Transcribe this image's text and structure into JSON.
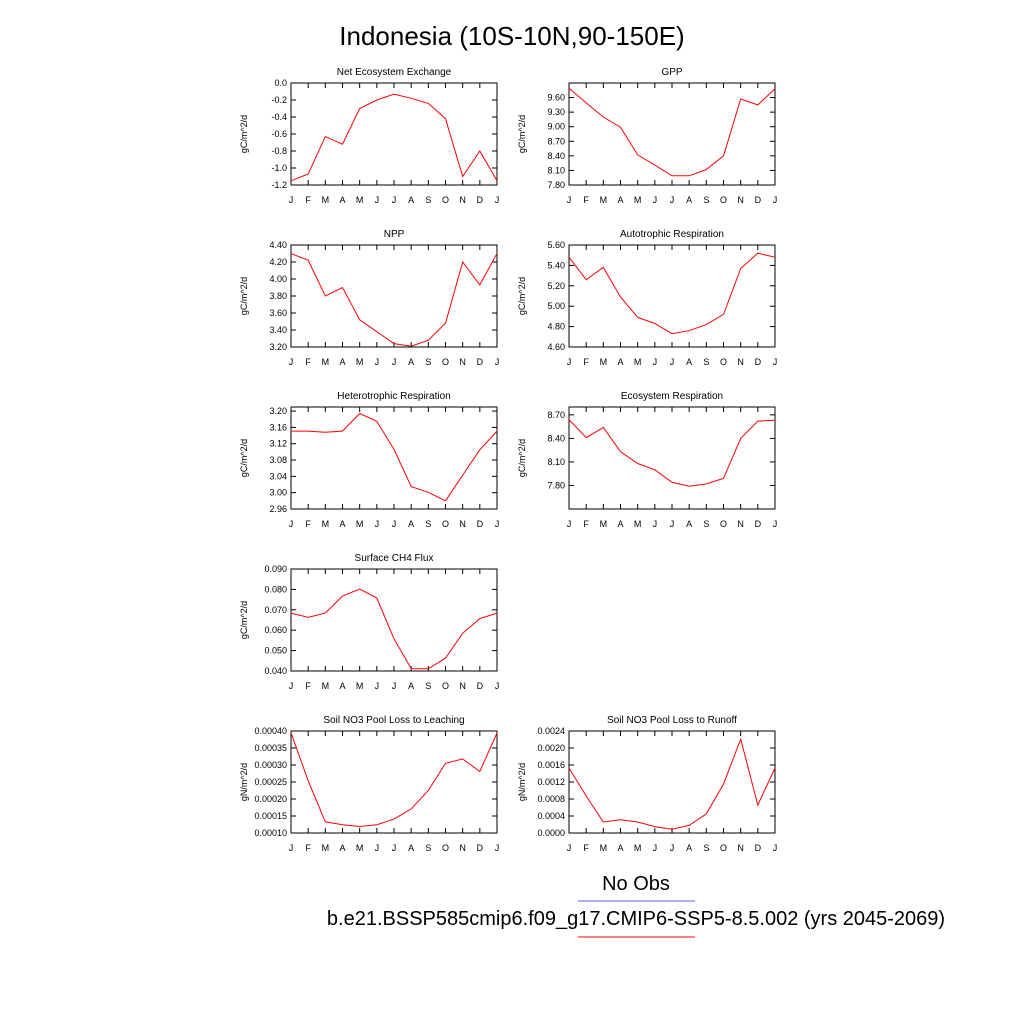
{
  "title": "Indonesia (10S-10N,90-150E)",
  "legend": {
    "obs_label": "No Obs",
    "obs_color": "#5b5bff",
    "model_label": "b.e21.BSSP585cmip6.f09_g17.CMIP6-SSP5-8.5.002 (yrs 2045-2069)",
    "model_color": "#ff0000"
  },
  "chart_data": [
    {
      "type": "line",
      "title": "Net Ecosystem Exchange",
      "ylabel": "gC/m^2/d",
      "categories": [
        "J",
        "F",
        "M",
        "A",
        "M",
        "J",
        "J",
        "A",
        "S",
        "O",
        "N",
        "D",
        "J"
      ],
      "ylim": [
        -1.2,
        0.0
      ],
      "yticks": [
        0.0,
        -0.2,
        -0.4,
        -0.6,
        -0.8,
        -1.0,
        -1.2
      ],
      "ytick_labels": [
        "0.0",
        "-0.2",
        "-0.4",
        "-0.6",
        "-0.8",
        "-1.0",
        "-1.2"
      ],
      "series": [
        {
          "values": [
            -1.15,
            -1.07,
            -0.63,
            -0.72,
            -0.3,
            -0.2,
            -0.13,
            -0.18,
            -0.24,
            -0.42,
            -1.1,
            -0.8,
            -1.15
          ]
        }
      ]
    },
    {
      "type": "line",
      "title": "GPP",
      "ylabel": "gC/m^2/d",
      "categories": [
        "J",
        "F",
        "M",
        "A",
        "M",
        "J",
        "J",
        "A",
        "S",
        "O",
        "N",
        "D",
        "J"
      ],
      "ylim": [
        7.8,
        9.9
      ],
      "yticks": [
        9.6,
        9.3,
        9.0,
        8.7,
        8.4,
        8.1,
        7.8
      ],
      "ytick_labels": [
        "9.60",
        "9.30",
        "9.00",
        "8.70",
        "8.40",
        "8.10",
        "7.80"
      ],
      "series": [
        {
          "values": [
            9.79,
            9.49,
            9.2,
            8.99,
            8.42,
            8.21,
            7.99,
            7.99,
            8.12,
            8.4,
            9.57,
            9.45,
            9.78
          ]
        }
      ]
    },
    {
      "type": "line",
      "title": "NPP",
      "ylabel": "gC/m^2/d",
      "categories": [
        "J",
        "F",
        "M",
        "A",
        "M",
        "J",
        "J",
        "A",
        "S",
        "O",
        "N",
        "D",
        "J"
      ],
      "ylim": [
        3.2,
        4.4
      ],
      "yticks": [
        4.4,
        4.2,
        4.0,
        3.8,
        3.6,
        3.4,
        3.2
      ],
      "ytick_labels": [
        "4.40",
        "4.20",
        "4.00",
        "3.80",
        "3.60",
        "3.40",
        "3.20"
      ],
      "series": [
        {
          "values": [
            4.3,
            4.22,
            3.8,
            3.9,
            3.52,
            3.38,
            3.24,
            3.21,
            3.28,
            3.48,
            4.2,
            3.93,
            4.3
          ]
        }
      ]
    },
    {
      "type": "line",
      "title": "Autotrophic Respiration",
      "ylabel": "gC/m^2/d",
      "categories": [
        "J",
        "F",
        "M",
        "A",
        "M",
        "J",
        "J",
        "A",
        "S",
        "O",
        "N",
        "D",
        "J"
      ],
      "ylim": [
        4.6,
        5.6
      ],
      "yticks": [
        5.6,
        5.4,
        5.2,
        5.0,
        4.8,
        4.6
      ],
      "ytick_labels": [
        "5.60",
        "5.40",
        "5.20",
        "5.00",
        "4.80",
        "4.60"
      ],
      "series": [
        {
          "values": [
            5.48,
            5.26,
            5.38,
            5.09,
            4.89,
            4.83,
            4.73,
            4.76,
            4.82,
            4.92,
            5.37,
            5.52,
            5.48
          ]
        }
      ]
    },
    {
      "type": "line",
      "title": "Heterotrophic Respiration",
      "ylabel": "gC/m^2/d",
      "categories": [
        "J",
        "F",
        "M",
        "A",
        "M",
        "J",
        "J",
        "A",
        "S",
        "O",
        "N",
        "D",
        "J"
      ],
      "ylim": [
        2.96,
        3.21
      ],
      "yticks": [
        3.2,
        3.16,
        3.12,
        3.08,
        3.04,
        3.0,
        2.96
      ],
      "ytick_labels": [
        "3.20",
        "3.16",
        "3.12",
        "3.08",
        "3.04",
        "3.00",
        "2.96"
      ],
      "series": [
        {
          "values": [
            3.151,
            3.151,
            3.148,
            3.151,
            3.194,
            3.175,
            3.106,
            3.015,
            3.001,
            2.98,
            3.043,
            3.105,
            3.151
          ]
        }
      ]
    },
    {
      "type": "line",
      "title": "Ecosystem Respiration",
      "ylabel": "gC/m^2/d",
      "categories": [
        "J",
        "F",
        "M",
        "A",
        "M",
        "J",
        "J",
        "A",
        "S",
        "O",
        "N",
        "D",
        "J"
      ],
      "ylim": [
        7.5,
        8.8
      ],
      "yticks": [
        8.7,
        8.4,
        8.1,
        7.8
      ],
      "ytick_labels": [
        "8.70",
        "8.40",
        "8.10",
        "7.80"
      ],
      "series": [
        {
          "values": [
            8.64,
            8.41,
            8.54,
            8.23,
            8.08,
            8.0,
            7.84,
            7.79,
            7.82,
            7.89,
            8.4,
            8.62,
            8.63
          ]
        }
      ]
    },
    {
      "type": "line",
      "title": "Surface CH4 Flux",
      "ylabel": "gC/m^2/d",
      "categories": [
        "J",
        "F",
        "M",
        "A",
        "M",
        "J",
        "J",
        "A",
        "S",
        "O",
        "N",
        "D",
        "J"
      ],
      "ylim": [
        0.04,
        0.09
      ],
      "yticks": [
        0.09,
        0.08,
        0.07,
        0.06,
        0.05,
        0.04
      ],
      "ytick_labels": [
        "0.090",
        "0.080",
        "0.070",
        "0.060",
        "0.050",
        "0.040"
      ],
      "series": [
        {
          "values": [
            0.0684,
            0.0663,
            0.0684,
            0.0767,
            0.0802,
            0.0758,
            0.0558,
            0.0412,
            0.0411,
            0.0463,
            0.0585,
            0.0657,
            0.0684
          ]
        }
      ]
    },
    {
      "type": "line",
      "title": "Soil NO3 Pool Loss to Leaching",
      "ylabel": "gN/m^2/d",
      "categories": [
        "J",
        "F",
        "M",
        "A",
        "M",
        "J",
        "J",
        "A",
        "S",
        "O",
        "N",
        "D",
        "J"
      ],
      "ylim": [
        0.0001,
        0.0004
      ],
      "yticks": [
        0.0004,
        0.00035,
        0.0003,
        0.00025,
        0.0002,
        0.00015,
        0.0001
      ],
      "ytick_labels": [
        "0.00040",
        "0.00035",
        "0.00030",
        "0.00025",
        "0.00020",
        "0.00015",
        "0.00010"
      ],
      "series": [
        {
          "values": [
            0.000395,
            0.000253,
            0.000133,
            0.000124,
            0.000119,
            0.000124,
            0.000141,
            0.000171,
            0.000225,
            0.000305,
            0.000318,
            0.000281,
            0.000394
          ]
        }
      ]
    },
    {
      "type": "line",
      "title": "Soil NO3 Pool Loss to Runoff",
      "ylabel": "gN/m^2/d",
      "categories": [
        "J",
        "F",
        "M",
        "A",
        "M",
        "J",
        "J",
        "A",
        "S",
        "O",
        "N",
        "D",
        "J"
      ],
      "ylim": [
        0.0,
        0.0024
      ],
      "yticks": [
        0.0024,
        0.002,
        0.0016,
        0.0012,
        0.0008,
        0.0004,
        0.0
      ],
      "ytick_labels": [
        "0.0024",
        "0.0020",
        "0.0016",
        "0.0012",
        "0.0008",
        "0.0004",
        "0.0000"
      ],
      "series": [
        {
          "values": [
            0.00153,
            0.00087,
            0.00026,
            0.00031,
            0.00026,
            0.00015,
            9e-05,
            0.00018,
            0.00045,
            0.00115,
            0.00221,
            0.00066,
            0.00153
          ]
        }
      ]
    }
  ]
}
